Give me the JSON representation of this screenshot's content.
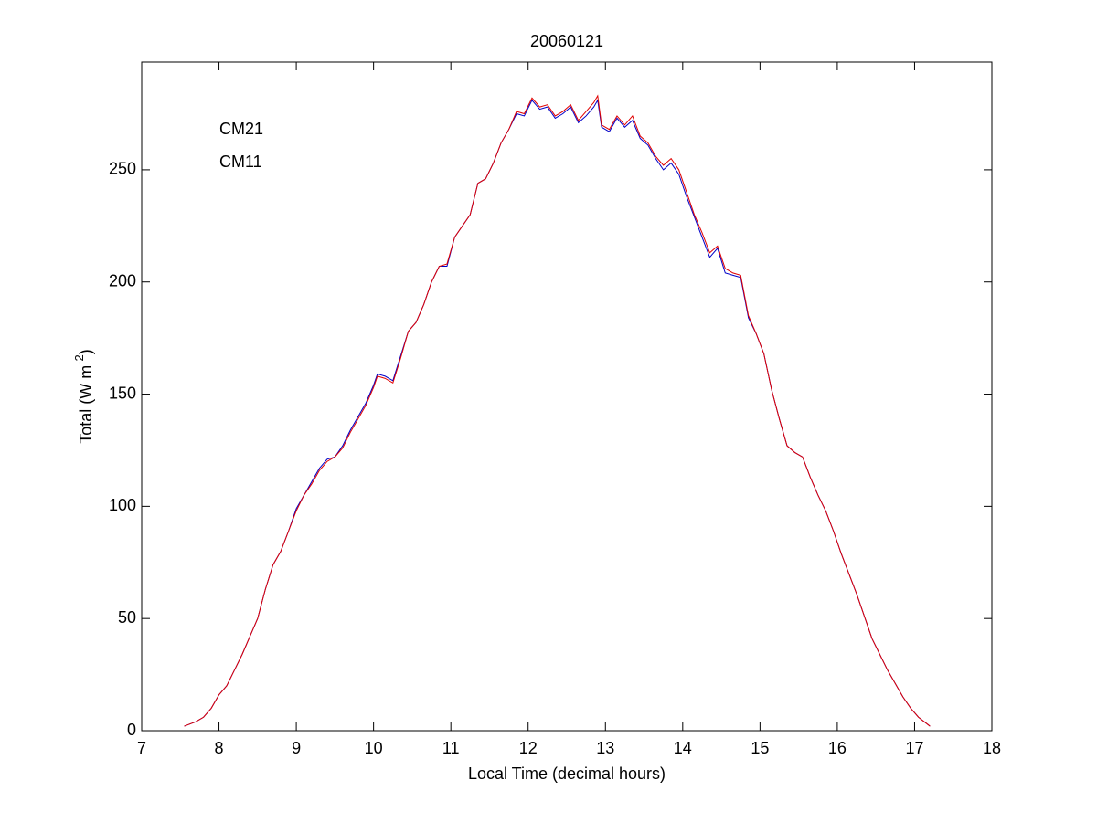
{
  "chart_data": {
    "type": "line",
    "title": "20060121",
    "xlabel": "Local Time (decimal hours)",
    "ylabel": [
      "Total (W m",
      "-2",
      ")"
    ],
    "legend": "upper left",
    "xlim": [
      7,
      18
    ],
    "xticks": [
      7,
      8,
      9,
      10,
      11,
      12,
      13,
      14,
      15,
      16,
      17,
      18
    ],
    "ylim": [
      0,
      298
    ],
    "yticks": [
      0,
      50,
      100,
      150,
      200,
      250
    ],
    "x": [
      7.55,
      7.7,
      7.8,
      7.9,
      8.0,
      8.1,
      8.2,
      8.3,
      8.4,
      8.5,
      8.6,
      8.7,
      8.8,
      8.9,
      9.0,
      9.1,
      9.2,
      9.3,
      9.4,
      9.5,
      9.6,
      9.7,
      9.8,
      9.9,
      10.0,
      10.05,
      10.15,
      10.25,
      10.35,
      10.45,
      10.55,
      10.65,
      10.75,
      10.85,
      10.95,
      11.05,
      11.15,
      11.25,
      11.35,
      11.45,
      11.55,
      11.65,
      11.75,
      11.85,
      11.95,
      12.05,
      12.15,
      12.25,
      12.35,
      12.45,
      12.55,
      12.65,
      12.75,
      12.85,
      12.9,
      12.95,
      13.05,
      13.15,
      13.25,
      13.35,
      13.45,
      13.55,
      13.65,
      13.75,
      13.85,
      13.95,
      14.05,
      14.15,
      14.25,
      14.35,
      14.45,
      14.55,
      14.65,
      14.75,
      14.85,
      14.95,
      15.05,
      15.15,
      15.25,
      15.35,
      15.45,
      15.55,
      15.65,
      15.75,
      15.85,
      15.95,
      16.05,
      16.15,
      16.25,
      16.35,
      16.45,
      16.55,
      16.65,
      16.75,
      16.85,
      16.95,
      17.05,
      17.2
    ],
    "series": [
      {
        "name": "CM21",
        "color": "#0000c8",
        "values": [
          2,
          4,
          6,
          10,
          16,
          20,
          27,
          34,
          42,
          50,
          63,
          74,
          80,
          89,
          99,
          105,
          111,
          117,
          121,
          122,
          127,
          134,
          140,
          146,
          154,
          159,
          158,
          156,
          167,
          178,
          182,
          190,
          200,
          207,
          207,
          220,
          225,
          230,
          244,
          246,
          253,
          262,
          268,
          275,
          274,
          281,
          277,
          278,
          273,
          275,
          278,
          271,
          274,
          278,
          281,
          269,
          267,
          273,
          269,
          272,
          264,
          261,
          255,
          250,
          253,
          248,
          238,
          229,
          220,
          211,
          215,
          204,
          203,
          202,
          184,
          177,
          168,
          152,
          139,
          127,
          124,
          122,
          113,
          105,
          98,
          89,
          79,
          70,
          61,
          51,
          41,
          34,
          27,
          21,
          15,
          10,
          6,
          2
        ]
      },
      {
        "name": "CM11",
        "color": "#e00000",
        "values": [
          2,
          4,
          6,
          10,
          16,
          20,
          27,
          34,
          42,
          50,
          63,
          74,
          80,
          89,
          98,
          105,
          110,
          116,
          120,
          122,
          126,
          133,
          139,
          145,
          153,
          158,
          157,
          155,
          166,
          178,
          182,
          190,
          200,
          207,
          208,
          220,
          225,
          230,
          244,
          246,
          253,
          262,
          268,
          276,
          275,
          282,
          278,
          279,
          274,
          276,
          279,
          272,
          276,
          280,
          283,
          270,
          268,
          274,
          270,
          274,
          265,
          262,
          256,
          252,
          255,
          250,
          240,
          230,
          222,
          213,
          216,
          206,
          204,
          203,
          185,
          177,
          168,
          152,
          139,
          127,
          124,
          122,
          113,
          105,
          98,
          89,
          79,
          70,
          61,
          51,
          41,
          34,
          27,
          21,
          15,
          10,
          6,
          2
        ]
      }
    ]
  }
}
